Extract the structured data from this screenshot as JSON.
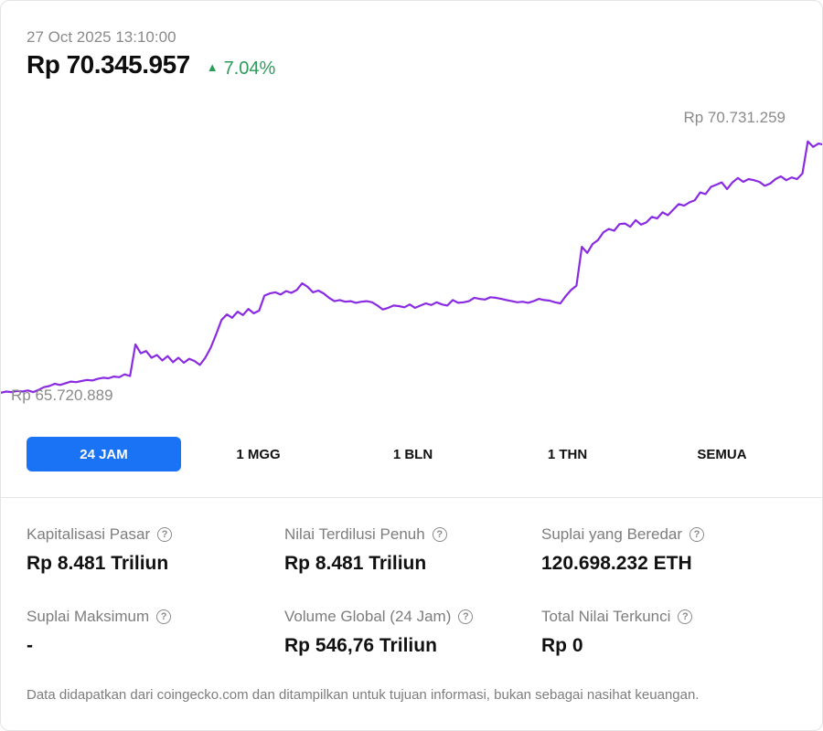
{
  "header": {
    "timestamp": "27 Oct 2025 13:10:00",
    "price": "Rp 70.345.957",
    "change": "7.04%",
    "change_color": "#2a9d5a"
  },
  "chart_data": {
    "type": "line",
    "line_color": "#8a2be2",
    "max_label": "Rp 70.731.259",
    "min_label": "Rp 65.720.889",
    "ylim": [
      65500000,
      71100000
    ],
    "series": [
      {
        "values": [
          65850000,
          65870000,
          65860000,
          65880000,
          65870000,
          65890000,
          65860000,
          65900000,
          65950000,
          65970000,
          66010000,
          65990000,
          66020000,
          66050000,
          66040000,
          66060000,
          66080000,
          66070000,
          66100000,
          66120000,
          66110000,
          66140000,
          66130000,
          66180000,
          66150000,
          66720000,
          66560000,
          66600000,
          66480000,
          66530000,
          66430000,
          66510000,
          66400000,
          66480000,
          66390000,
          66460000,
          66420000,
          66350000,
          66480000,
          66660000,
          66900000,
          67160000,
          67260000,
          67200000,
          67310000,
          67250000,
          67360000,
          67280000,
          67330000,
          67600000,
          67640000,
          67660000,
          67620000,
          67680000,
          67650000,
          67700000,
          67820000,
          67760000,
          67660000,
          67690000,
          67640000,
          67560000,
          67500000,
          67520000,
          67490000,
          67500000,
          67470000,
          67490000,
          67500000,
          67480000,
          67420000,
          67350000,
          67380000,
          67420000,
          67410000,
          67390000,
          67440000,
          67380000,
          67420000,
          67460000,
          67430000,
          67480000,
          67440000,
          67420000,
          67520000,
          67470000,
          67480000,
          67500000,
          67560000,
          67540000,
          67530000,
          67570000,
          67560000,
          67540000,
          67520000,
          67500000,
          67480000,
          67490000,
          67470000,
          67500000,
          67540000,
          67520000,
          67510000,
          67480000,
          67460000,
          67590000,
          67700000,
          67780000,
          68480000,
          68370000,
          68530000,
          68600000,
          68740000,
          68800000,
          68770000,
          68890000,
          68900000,
          68840000,
          68960000,
          68880000,
          68920000,
          69020000,
          68990000,
          69100000,
          69050000,
          69150000,
          69250000,
          69220000,
          69280000,
          69320000,
          69460000,
          69430000,
          69560000,
          69600000,
          69640000,
          69520000,
          69640000,
          69720000,
          69650000,
          69700000,
          69680000,
          69650000,
          69580000,
          69620000,
          69700000,
          69750000,
          69680000,
          69730000,
          69700000,
          69800000,
          70380000,
          70280000,
          70340000,
          70320000
        ]
      }
    ]
  },
  "ranges": {
    "r24": "24 JAM",
    "r1w": "1 MGG",
    "r1m": "1 BLN",
    "r1y": "1 THN",
    "rall": "SEMUA",
    "active_color": "#1a73f5"
  },
  "stats": {
    "market_cap": {
      "label": "Kapitalisasi Pasar",
      "value": "Rp 8.481 Triliun"
    },
    "fdv": {
      "label": "Nilai Terdilusi Penuh",
      "value": "Rp 8.481 Triliun"
    },
    "circulating": {
      "label": "Suplai yang Beredar",
      "value": "120.698.232 ETH"
    },
    "max_supply": {
      "label": "Suplai Maksimum",
      "value": "-"
    },
    "volume": {
      "label": "Volume Global (24 Jam)",
      "value": "Rp 546,76 Triliun"
    },
    "tvl": {
      "label": "Total Nilai Terkunci",
      "value": "Rp 0"
    },
    "help_icon": "question-circle-icon",
    "help_glyph": "?"
  },
  "footer": "Data didapatkan dari coingecko.com dan ditampilkan untuk tujuan informasi, bukan sebagai nasihat keuangan."
}
